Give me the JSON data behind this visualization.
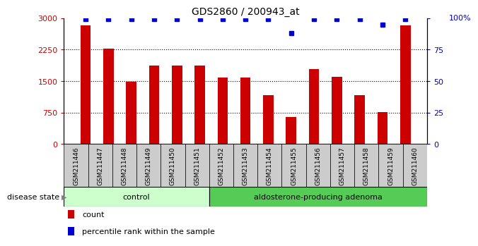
{
  "title": "GDS2860 / 200943_at",
  "categories": [
    "GSM211446",
    "GSM211447",
    "GSM211448",
    "GSM211449",
    "GSM211450",
    "GSM211451",
    "GSM211452",
    "GSM211453",
    "GSM211454",
    "GSM211455",
    "GSM211456",
    "GSM211457",
    "GSM211458",
    "GSM211459",
    "GSM211460"
  ],
  "counts": [
    2820,
    2270,
    1490,
    1870,
    1870,
    1870,
    1580,
    1590,
    1170,
    640,
    1790,
    1610,
    1170,
    760,
    2820
  ],
  "percentiles": [
    99,
    99,
    99,
    99,
    99,
    99,
    99,
    99,
    99,
    88,
    99,
    99,
    99,
    95,
    99
  ],
  "ylim_left": [
    0,
    3000
  ],
  "ylim_right": [
    0,
    100
  ],
  "yticks_left": [
    0,
    750,
    1500,
    2250,
    3000
  ],
  "yticks_right": [
    0,
    25,
    50,
    75,
    100
  ],
  "bar_color": "#cc0000",
  "dot_color": "#0000cc",
  "control_count": 6,
  "group_labels": [
    "control",
    "aldosterone-producing adenoma"
  ],
  "group_colors": [
    "#ccffcc",
    "#55cc55"
  ],
  "tick_bg_color": "#cccccc",
  "legend_count_label": "count",
  "legend_percentile_label": "percentile rank within the sample",
  "disease_state_label": "disease state"
}
